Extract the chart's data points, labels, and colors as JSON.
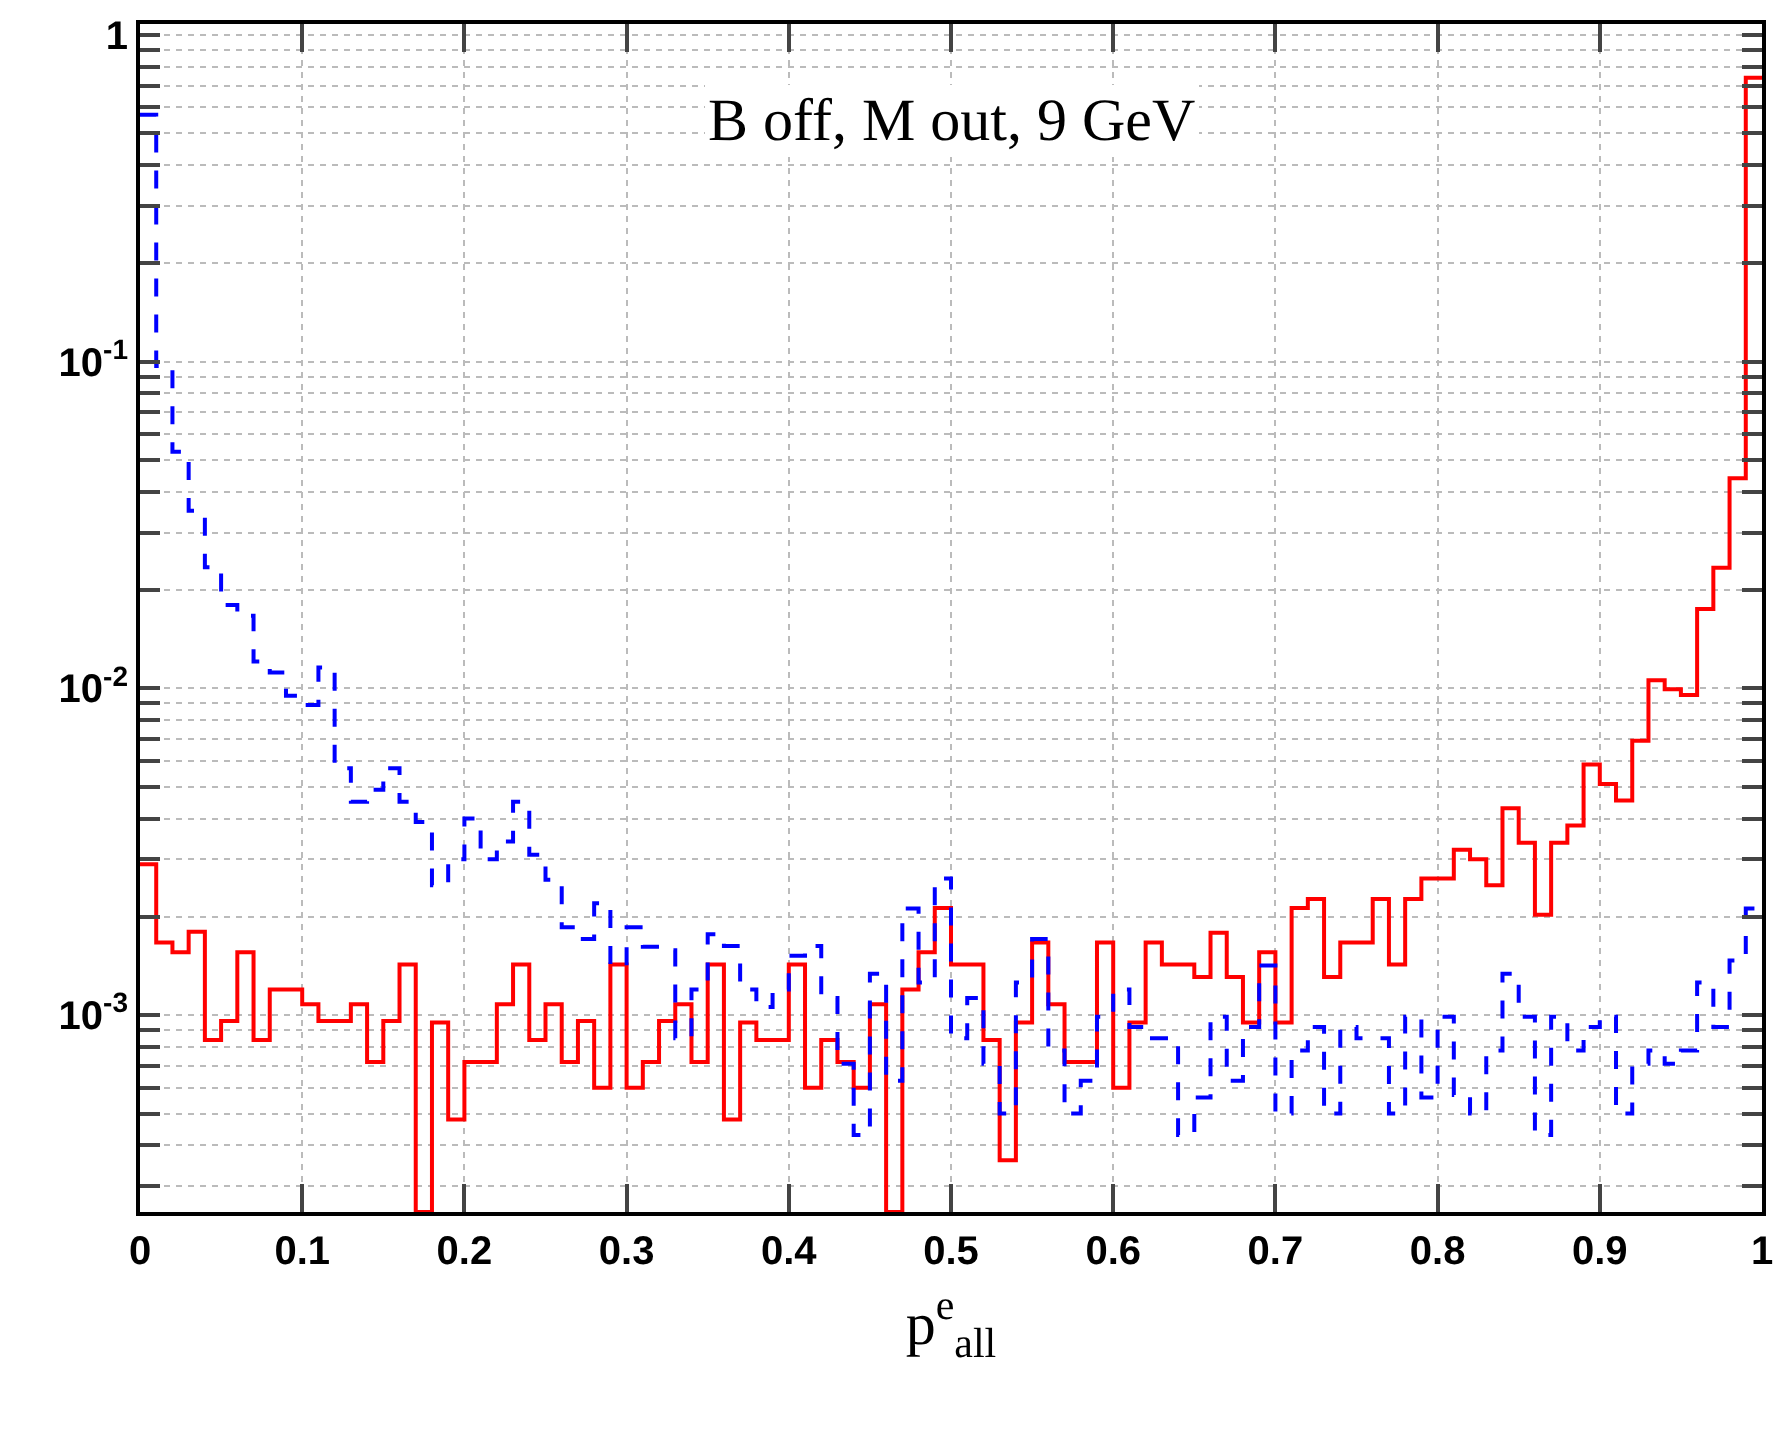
{
  "chart_data": {
    "type": "histogram",
    "xlabel": "p$^{e}$$_{all}$",
    "annotations": [
      "B off, M out, 9 GeV"
    ],
    "bins": [
      0,
      0.01,
      0.02,
      0.03,
      0.04,
      0.05,
      0.06,
      0.07,
      0.08,
      0.09,
      0.1,
      0.11,
      0.12,
      0.13,
      0.14,
      0.15,
      0.16,
      0.17,
      0.18,
      0.19,
      0.2,
      0.21,
      0.22,
      0.23,
      0.24,
      0.25,
      0.26,
      0.27,
      0.28,
      0.29,
      0.3,
      0.31,
      0.32,
      0.33,
      0.34,
      0.35,
      0.36,
      0.37,
      0.38,
      0.39,
      0.4,
      0.41,
      0.42,
      0.43,
      0.44,
      0.45,
      0.46,
      0.47,
      0.48,
      0.49,
      0.5,
      0.51,
      0.52,
      0.53,
      0.54,
      0.55,
      0.56,
      0.57,
      0.58,
      0.59,
      0.6,
      0.61,
      0.62,
      0.63,
      0.64,
      0.65,
      0.66,
      0.67,
      0.68,
      0.69,
      0.7,
      0.71,
      0.72,
      0.73,
      0.74,
      0.75,
      0.76,
      0.77,
      0.78,
      0.79,
      0.8,
      0.81,
      0.82,
      0.83,
      0.84,
      0.85,
      0.86,
      0.87,
      0.88,
      0.89,
      0.9,
      0.91,
      0.92,
      0.93,
      0.94,
      0.95,
      0.96,
      0.97,
      0.98,
      0.99,
      1
    ],
    "series": [
      {
        "color": "#ff0000",
        "line_style": "solid",
        "values": [
          0.0029,
          0.00167,
          0.00156,
          0.0018,
          0.00084,
          0.00096,
          0.00156,
          0.00084,
          0.0012,
          0.0012,
          0.00108,
          0.00096,
          0.00096,
          0.00108,
          0.00072,
          0.00096,
          0.00143,
          null,
          0.00095,
          0.00048,
          0.00072,
          0.00072,
          0.00108,
          0.00143,
          0.00084,
          0.00108,
          0.00072,
          0.00096,
          0.0006,
          0.00143,
          0.0006,
          0.00072,
          0.00096,
          0.00108,
          0.00072,
          0.00143,
          0.00048,
          0.00095,
          0.00084,
          0.00084,
          0.00143,
          0.0006,
          0.00084,
          0.00072,
          0.0006,
          0.00108,
          null,
          0.0012,
          0.00156,
          0.00213,
          0.00143,
          0.00143,
          0.00084,
          0.00036,
          0.00095,
          0.00167,
          0.00108,
          0.00072,
          0.00072,
          0.00167,
          0.0006,
          0.00095,
          0.00167,
          0.00143,
          0.00143,
          0.00131,
          0.00179,
          0.00131,
          0.00095,
          0.00156,
          0.00095,
          0.00213,
          0.00227,
          0.00131,
          0.00167,
          0.00167,
          0.00227,
          0.00143,
          0.00227,
          0.00262,
          0.00262,
          0.00321,
          0.003,
          0.0025,
          0.0043,
          0.00337,
          0.00203,
          0.00337,
          0.00381,
          0.00585,
          0.0051,
          0.00454,
          0.00692,
          0.0106,
          0.00995,
          0.00955,
          0.0175,
          0.0234,
          0.044,
          0.74
        ]
      },
      {
        "color": "#0000ff",
        "line_style": "dashed",
        "values": [
          0.57,
          0.097,
          0.053,
          0.035,
          0.0235,
          0.018,
          0.0167,
          0.0121,
          0.0112,
          0.0095,
          0.0089,
          0.0116,
          0.0057,
          0.0045,
          0.0049,
          0.0057,
          0.0045,
          0.0039,
          0.0025,
          0.003,
          0.004,
          0.003,
          0.0034,
          0.0045,
          0.0031,
          0.0026,
          0.00186,
          0.00171,
          0.0022,
          0.00142,
          0.00186,
          0.00162,
          0.00158,
          0.00085,
          0.0012,
          0.00177,
          0.00163,
          0.0012,
          0.00106,
          0.0012,
          0.00152,
          0.00163,
          0.00113,
          0.00071,
          0.00043,
          0.00134,
          0.00063,
          0.00212,
          0.00126,
          0.00262,
          0.00085,
          0.00113,
          0.00071,
          0.0005,
          0.00126,
          0.00171,
          0.00078,
          0.0005,
          0.00063,
          0.00099,
          0.0012,
          0.00092,
          0.00085,
          0.00085,
          0.00043,
          0.00056,
          0.00099,
          0.00063,
          0.00092,
          0.00142,
          0.0005,
          0.00078,
          0.00092,
          0.0005,
          0.00092,
          0.00085,
          0.00085,
          0.0005,
          0.00099,
          0.00056,
          0.00099,
          0.00057,
          0.0005,
          0.00078,
          0.00134,
          0.00099,
          0.00043,
          0.00099,
          0.00078,
          0.00092,
          0.00099,
          0.0005,
          0.00071,
          0.00078,
          0.00071,
          0.00078,
          0.00126,
          0.00092,
          0.00147,
          0.00212
        ]
      }
    ],
    "xlim": [
      0,
      1
    ],
    "xticks": [
      0,
      0.1,
      0.2,
      0.3,
      0.4,
      0.5,
      0.6,
      0.7,
      0.8,
      0.9,
      1
    ],
    "ylim": [
      0.00025,
      1.08
    ],
    "yticks": [
      {
        "value": 0.0003,
        "label": null
      },
      {
        "value": 0.0004,
        "label": null
      },
      {
        "value": 0.0005,
        "label": null
      },
      {
        "value": 0.0006,
        "label": null
      },
      {
        "value": 0.0007,
        "label": null
      },
      {
        "value": 0.0008,
        "label": null
      },
      {
        "value": 0.0009,
        "label": null
      },
      {
        "value": 0.001,
        "label": "10$^{-3}$"
      },
      {
        "value": 0.002,
        "label": null
      },
      {
        "value": 0.003,
        "label": null
      },
      {
        "value": 0.004,
        "label": null
      },
      {
        "value": 0.005,
        "label": null
      },
      {
        "value": 0.006,
        "label": null
      },
      {
        "value": 0.007,
        "label": null
      },
      {
        "value": 0.008,
        "label": null
      },
      {
        "value": 0.009,
        "label": null
      },
      {
        "value": 0.01,
        "label": "10$^{-2}$"
      },
      {
        "value": 0.02,
        "label": null
      },
      {
        "value": 0.03,
        "label": null
      },
      {
        "value": 0.04,
        "label": null
      },
      {
        "value": 0.05,
        "label": null
      },
      {
        "value": 0.06,
        "label": null
      },
      {
        "value": 0.07,
        "label": null
      },
      {
        "value": 0.08,
        "label": null
      },
      {
        "value": 0.09,
        "label": null
      },
      {
        "value": 0.1,
        "label": "10$^{-1}$"
      },
      {
        "value": 0.2,
        "label": null
      },
      {
        "value": 0.3,
        "label": null
      },
      {
        "value": 0.4,
        "label": null
      },
      {
        "value": 0.5,
        "label": null
      },
      {
        "value": 0.6,
        "label": null
      },
      {
        "value": 0.7,
        "label": null
      },
      {
        "value": 0.8,
        "label": null
      },
      {
        "value": 0.9,
        "label": null
      },
      {
        "value": 1,
        "label": "1"
      }
    ],
    "log": "y",
    "grid": true
  }
}
